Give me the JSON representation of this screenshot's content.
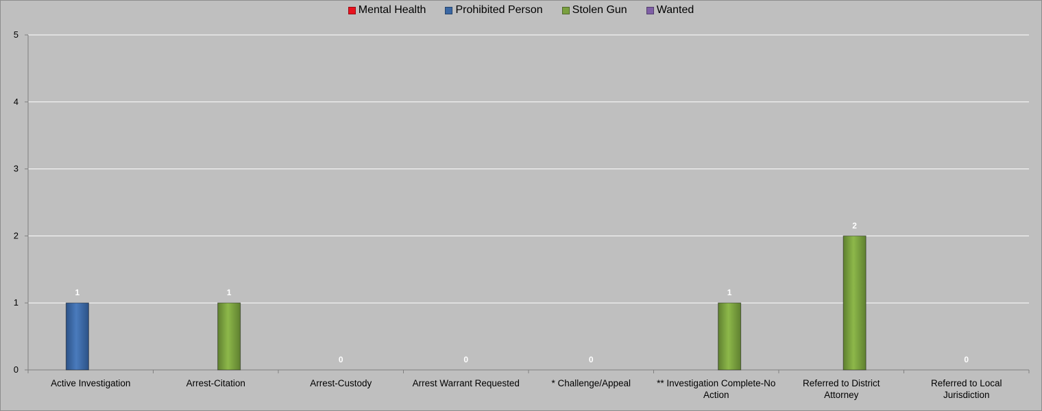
{
  "chart_data": {
    "type": "bar",
    "categories": [
      "Active Investigation",
      "Arrest-Citation",
      "Arrest-Custody",
      "Arrest Warrant Requested",
      "* Challenge/Appeal",
      "** Investigation Complete-No Action",
      "Referred to District Attorney",
      "Referred to Local Jurisdiction"
    ],
    "category_label_lines": [
      [
        "Active Investigation"
      ],
      [
        "Arrest-Citation"
      ],
      [
        "Arrest-Custody"
      ],
      [
        "Arrest Warrant Requested"
      ],
      [
        "* Challenge/Appeal"
      ],
      [
        "** Investigation Complete-No",
        "Action"
      ],
      [
        "Referred to District",
        "Attorney"
      ],
      [
        "Referred to Local",
        "Jurisdiction"
      ]
    ],
    "series": [
      {
        "name": "Mental Health",
        "color": "#e8121e",
        "values": [
          0,
          0,
          0,
          0,
          0,
          0,
          0,
          0
        ]
      },
      {
        "name": "Prohibited Person",
        "color": "#3a67a3",
        "values": [
          1,
          0,
          0,
          0,
          0,
          0,
          0,
          0
        ]
      },
      {
        "name": "Stolen Gun",
        "color": "#7aa03f",
        "values": [
          0,
          1,
          0,
          0,
          0,
          1,
          2,
          0
        ]
      },
      {
        "name": "Wanted",
        "color": "#7f5fa6",
        "values": [
          0,
          0,
          0,
          0,
          0,
          0,
          0,
          0
        ]
      }
    ],
    "data_labels": [
      {
        "category_index": 0,
        "text": "1"
      },
      {
        "category_index": 1,
        "text": "1"
      },
      {
        "category_index": 2,
        "text": "0"
      },
      {
        "category_index": 3,
        "text": "0"
      },
      {
        "category_index": 4,
        "text": "0"
      },
      {
        "category_index": 5,
        "text": "1"
      },
      {
        "category_index": 6,
        "text": "2"
      },
      {
        "category_index": 7,
        "text": "0"
      }
    ],
    "title": "",
    "xlabel": "",
    "ylabel": "",
    "ylim": [
      0,
      5
    ],
    "yticks": [
      0,
      1,
      2,
      3,
      4,
      5
    ],
    "grid": true,
    "legend_position": "top"
  },
  "colors": {
    "plot_background": "#bfbfbf",
    "gridline": "#ffffff"
  }
}
